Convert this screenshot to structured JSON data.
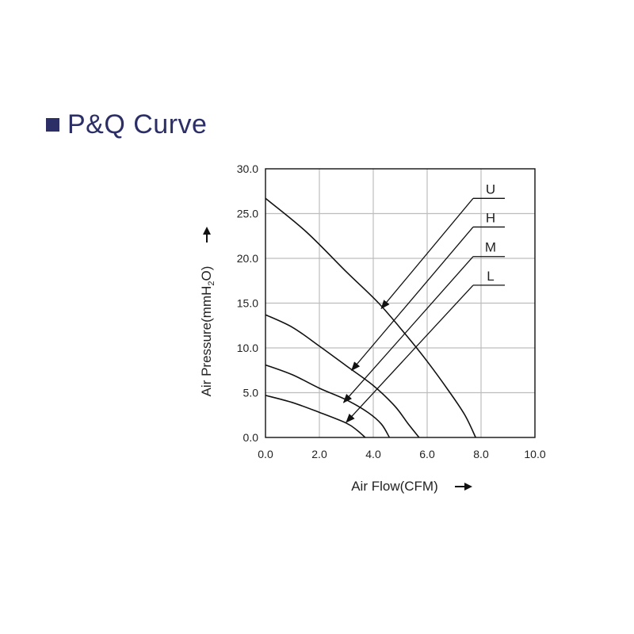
{
  "page": {
    "title": "P&Q Curve",
    "title_color": "#2b2f66"
  },
  "chart_data": {
    "type": "line",
    "xlabel": "Air Flow(CFM)",
    "ylabel": "Air Pressure(mmH2O)",
    "xlim": [
      0,
      10
    ],
    "ylim": [
      0,
      30
    ],
    "x_ticks": [
      "0.0",
      "2.0",
      "4.0",
      "6.0",
      "8.0",
      "10.0"
    ],
    "y_ticks": [
      "0.0",
      "5.0",
      "10.0",
      "15.0",
      "20.0",
      "25.0",
      "30.0"
    ],
    "grid": true,
    "series": [
      {
        "name": "U",
        "points": [
          [
            0.0,
            26.7
          ],
          [
            1.5,
            23.0
          ],
          [
            3.0,
            18.5
          ],
          [
            4.2,
            15.0
          ],
          [
            5.2,
            11.5
          ],
          [
            6.0,
            8.5
          ],
          [
            6.8,
            5.2
          ],
          [
            7.4,
            2.5
          ],
          [
            7.8,
            0.0
          ]
        ],
        "label_at": [
          8.0,
          26.7
        ]
      },
      {
        "name": "H",
        "points": [
          [
            0.0,
            13.7
          ],
          [
            1.0,
            12.3
          ],
          [
            2.0,
            10.2
          ],
          [
            3.0,
            8.0
          ],
          [
            4.0,
            5.8
          ],
          [
            4.8,
            3.5
          ],
          [
            5.3,
            1.5
          ],
          [
            5.7,
            0.0
          ]
        ],
        "label_at": [
          8.0,
          23.5
        ]
      },
      {
        "name": "M",
        "points": [
          [
            0.0,
            8.1
          ],
          [
            1.0,
            7.0
          ],
          [
            2.0,
            5.5
          ],
          [
            3.0,
            4.2
          ],
          [
            3.8,
            2.8
          ],
          [
            4.3,
            1.5
          ],
          [
            4.6,
            0.0
          ]
        ],
        "label_at": [
          8.0,
          20.2
        ]
      },
      {
        "name": "L",
        "points": [
          [
            0.0,
            4.7
          ],
          [
            1.0,
            3.9
          ],
          [
            2.0,
            2.8
          ],
          [
            3.0,
            1.6
          ],
          [
            3.4,
            0.8
          ],
          [
            3.7,
            0.0
          ]
        ],
        "label_at": [
          8.0,
          17.0
        ]
      }
    ]
  }
}
